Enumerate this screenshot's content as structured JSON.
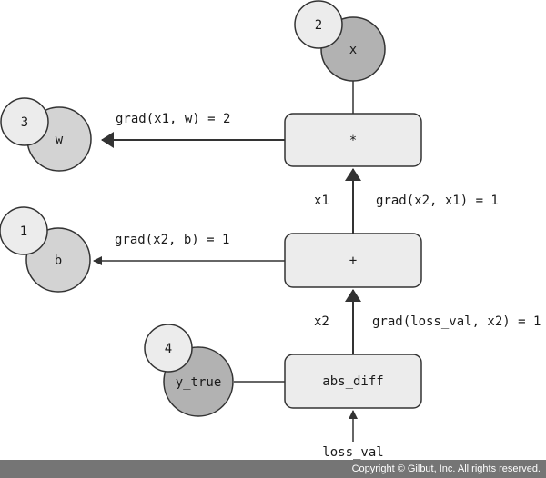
{
  "nodes": {
    "mul": "*",
    "add": "+",
    "absdiff": "abs_diff"
  },
  "inputs": {
    "x": {
      "label": "x",
      "order": "2"
    },
    "w": {
      "label": "w",
      "order": "3"
    },
    "b": {
      "label": "b",
      "order": "1"
    },
    "y_true": {
      "label": "y_true",
      "order": "4"
    }
  },
  "edges": {
    "grad_x1_w": "grad(x1, w) = 2",
    "grad_x2_b": "grad(x2, b) = 1",
    "x1": "x1",
    "grad_x2_x1": "grad(x2, x1) = 1",
    "x2": "x2",
    "grad_loss_x2": "grad(loss_val, x2) = 1",
    "loss_val": "loss_val"
  },
  "colors": {
    "op_fill": "#ececec",
    "dark_input": "#b2b2b2",
    "light_input": "#d3d3d3",
    "order_fill": "#ececec",
    "footer": "#757575"
  },
  "footer": "Copyright © Gilbut, Inc. All rights reserved."
}
